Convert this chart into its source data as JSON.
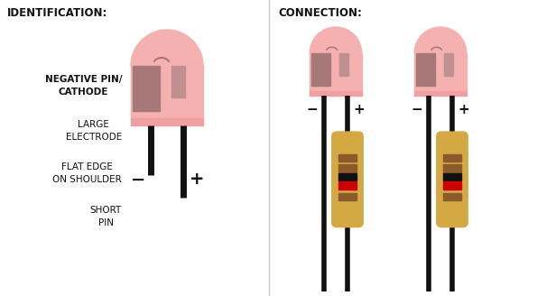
{
  "bg_color": "#ffffff",
  "left_label": "IDENTIFICATION:",
  "right_label": "CONNECTION:",
  "led_body_color": "#f5b0b0",
  "led_flat_color": "#f0a0a0",
  "electrode_large_color": "#a87878",
  "electrode_small_color": "#c09090",
  "pin_color": "#111111",
  "resistor_body_color": "#d4a843",
  "resistor_stripe_colors": [
    "#8b5a2b",
    "#8b5a2b",
    "#111111",
    "#cc0000",
    "#8b5a2b"
  ],
  "annotations": [
    {
      "text": "NEGATIVE PIN/\nCATHODE",
      "bold": true
    },
    {
      "text": "LARGE\nELECTRODE",
      "bold": false
    },
    {
      "text": "FLAT EDGE\nON SHOULDER",
      "bold": false
    },
    {
      "text": "SHORT\nPIN",
      "bold": false
    }
  ],
  "minus_color": "#111111",
  "plus_color": "#111111",
  "divider_color": "#cccccc",
  "label_fontsize": 8.5,
  "ann_fontsize": 7.5
}
